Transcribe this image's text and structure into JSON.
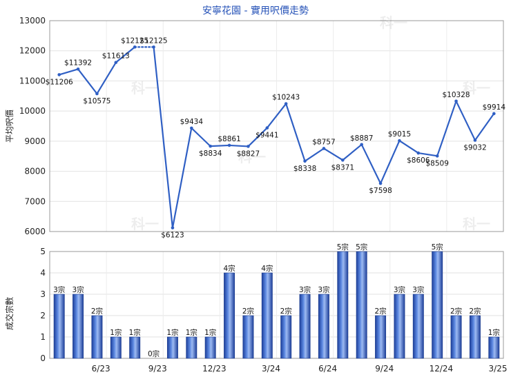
{
  "chart_data": [
    {
      "type": "line",
      "title": "安寧花園 - 實用呎價走勢",
      "ylabel": "平均呎價",
      "ylim": [
        6000,
        13000
      ],
      "yticks": [
        6000,
        7000,
        8000,
        9000,
        10000,
        11000,
        12000,
        13000
      ],
      "grid": true,
      "values": [
        11206,
        11392,
        10575,
        11613,
        12125,
        12125,
        6123,
        9434,
        8834,
        8861,
        8827,
        9441,
        10243,
        8338,
        8757,
        8371,
        8887,
        7598,
        9015,
        8606,
        8509,
        10328,
        9032,
        9914
      ],
      "labels": [
        "$11206",
        "$11392",
        "$10575",
        "$11613",
        "$12125",
        "$12125",
        "$6123",
        "$9434",
        "$8834",
        "$8861",
        "$8827",
        "$9441",
        "$10243",
        "$8338",
        "$8757",
        "$8371",
        "$8887",
        "$7598",
        "$9015",
        "$8606",
        "$8509",
        "$10328",
        "$9032",
        "$9914"
      ],
      "missing_after_index": 4,
      "line_color": "#2f5fc4"
    },
    {
      "type": "bar",
      "ylabel": "成交宗數",
      "ylim": [
        0,
        5
      ],
      "yticks": [
        0,
        1,
        2,
        3,
        4,
        5
      ],
      "grid": true,
      "values": [
        3,
        3,
        2,
        1,
        1,
        0,
        1,
        1,
        1,
        4,
        2,
        4,
        2,
        3,
        3,
        5,
        5,
        2,
        3,
        3,
        5,
        2,
        2,
        1
      ],
      "labels": [
        "3宗",
        "3宗",
        "2宗",
        "1宗",
        "1宗",
        "0宗",
        "1宗",
        "1宗",
        "1宗",
        "4宗",
        "2宗",
        "4宗",
        "2宗",
        "3宗",
        "3宗",
        "5宗",
        "5宗",
        "2宗",
        "3宗",
        "3宗",
        "5宗",
        "2宗",
        "2宗",
        "1宗"
      ],
      "xtick_labels": [
        "6/23",
        "9/23",
        "12/23",
        "3/24",
        "6/24",
        "9/24",
        "12/24",
        "3/25"
      ],
      "bar_color": "#2f5fc4"
    }
  ],
  "watermark": "科一"
}
